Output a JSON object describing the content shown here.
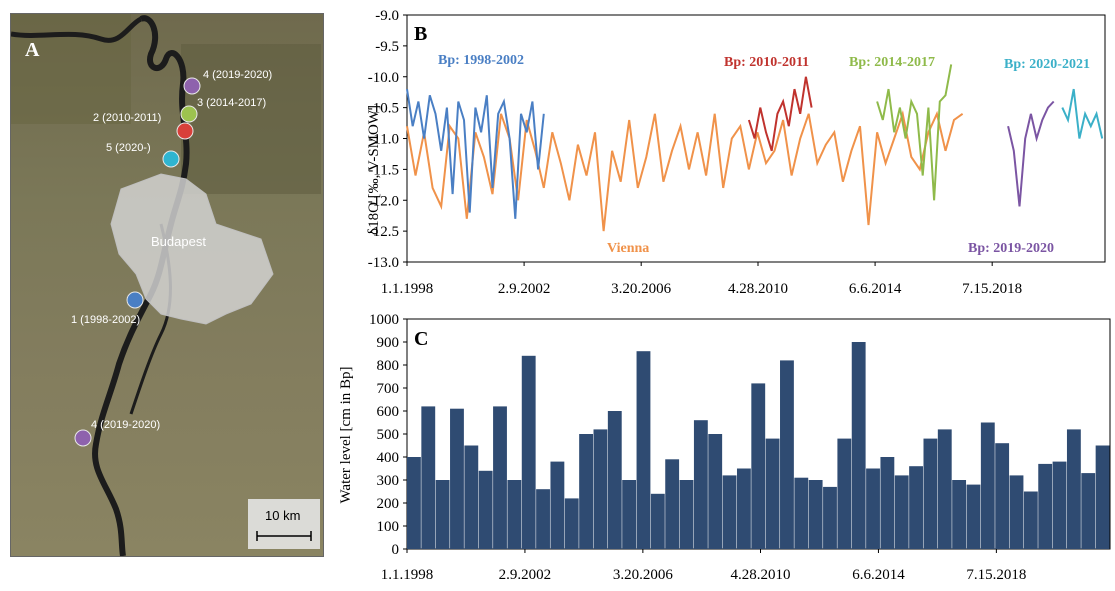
{
  "map": {
    "panel_label": "A",
    "city_label": "Budapest",
    "scale_label": "10 km",
    "sites": [
      {
        "label": "4 (2019-2020)",
        "color": "#8e62ad"
      },
      {
        "label": "3 (2014-2017)",
        "color": "#9dc34f"
      },
      {
        "label": "2 (2010-2011)",
        "color": "#d8403a"
      },
      {
        "label": "5 (2020-)",
        "color": "#2fb5d1"
      },
      {
        "label": "1 (1998-2002)",
        "color": "#4a7fc4"
      },
      {
        "label": "4 (2019-2020)",
        "color": "#8e62ad"
      }
    ]
  },
  "chart_data": [
    {
      "type": "line",
      "panel_label": "B",
      "ylabel": "δ18O [‰, V-SMOW]",
      "ylim": [
        -13.0,
        -9.0
      ],
      "yticks": [
        -9.0,
        -9.5,
        -10.0,
        -10.5,
        -11.0,
        -11.5,
        -12.0,
        -12.5,
        -13.0
      ],
      "ytick_labels": [
        "-9.0",
        "-9.5",
        "-10.0",
        "-10.5",
        "-11.0",
        "-11.5",
        "-12.0",
        "-12.5",
        "-13.0"
      ],
      "xtick_labels": [
        "1.1.1998",
        "2.9.2002",
        "3.20.2006",
        "4.28.2010",
        "6.6.2014",
        "7.15.2018"
      ],
      "xticks": [
        1998.0,
        2002.11,
        2006.22,
        2010.32,
        2014.43,
        2018.54
      ],
      "xlim": [
        1998.0,
        2022.5
      ],
      "grid": false,
      "series": [
        {
          "name": "Vienna",
          "color": "#f0924a",
          "x": [
            1998.0,
            1998.3,
            1998.6,
            1998.9,
            1999.2,
            1999.5,
            1999.8,
            2000.1,
            2000.4,
            2000.7,
            2001.0,
            2001.3,
            2001.6,
            2001.9,
            2002.2,
            2002.5,
            2002.8,
            2003.1,
            2003.4,
            2003.7,
            2004.0,
            2004.3,
            2004.6,
            2004.9,
            2005.2,
            2005.5,
            2005.8,
            2006.1,
            2006.4,
            2006.7,
            2007.0,
            2007.3,
            2007.6,
            2007.9,
            2008.2,
            2008.5,
            2008.8,
            2009.1,
            2009.4,
            2009.7,
            2010.0,
            2010.3,
            2010.6,
            2010.9,
            2011.2,
            2011.5,
            2011.8,
            2012.1,
            2012.4,
            2012.7,
            2013.0,
            2013.3,
            2013.6,
            2013.9,
            2014.2,
            2014.5,
            2014.8,
            2015.1,
            2015.4,
            2015.7,
            2016.0,
            2016.3,
            2016.6,
            2016.9,
            2017.2,
            2017.5
          ],
          "y": [
            -10.8,
            -11.6,
            -10.9,
            -11.8,
            -12.1,
            -10.8,
            -11.0,
            -12.3,
            -10.9,
            -11.3,
            -11.9,
            -10.6,
            -11.0,
            -12.0,
            -10.7,
            -11.2,
            -11.8,
            -10.9,
            -11.4,
            -12.0,
            -11.1,
            -11.6,
            -10.9,
            -12.5,
            -11.2,
            -11.7,
            -10.7,
            -11.8,
            -11.3,
            -10.6,
            -11.7,
            -11.2,
            -10.8,
            -11.5,
            -10.9,
            -11.6,
            -10.6,
            -11.8,
            -11.0,
            -10.8,
            -11.5,
            -10.9,
            -11.4,
            -11.2,
            -10.7,
            -11.6,
            -11.0,
            -10.6,
            -11.4,
            -11.1,
            -10.9,
            -11.7,
            -11.2,
            -10.8,
            -12.4,
            -10.9,
            -11.4,
            -11.0,
            -10.6,
            -11.3,
            -11.5,
            -10.9,
            -10.6,
            -11.2,
            -10.7,
            -10.6
          ]
        },
        {
          "name": "Bp: 1998-2002",
          "color": "#4a7fc4",
          "x": [
            1998.0,
            1998.2,
            1998.4,
            1998.6,
            1998.8,
            1999.0,
            1999.2,
            1999.4,
            1999.6,
            1999.8,
            2000.0,
            2000.2,
            2000.4,
            2000.6,
            2000.8,
            2001.0,
            2001.2,
            2001.4,
            2001.6,
            2001.8,
            2002.0,
            2002.2,
            2002.4,
            2002.6,
            2002.8
          ],
          "y": [
            -10.2,
            -10.8,
            -10.4,
            -11.0,
            -10.3,
            -10.6,
            -11.2,
            -10.5,
            -11.9,
            -10.4,
            -10.7,
            -12.2,
            -10.5,
            -10.9,
            -10.3,
            -11.8,
            -10.6,
            -10.4,
            -11.0,
            -12.3,
            -10.6,
            -10.9,
            -10.4,
            -11.5,
            -10.6
          ]
        },
        {
          "name": "Bp: 2010-2011",
          "color": "#c0332e",
          "x": [
            2010.0,
            2010.2,
            2010.4,
            2010.6,
            2010.8,
            2011.0,
            2011.2,
            2011.4,
            2011.6,
            2011.8,
            2012.0,
            2012.2
          ],
          "y": [
            -10.7,
            -11.0,
            -10.5,
            -10.9,
            -11.2,
            -10.6,
            -10.4,
            -10.8,
            -10.2,
            -10.6,
            -10.0,
            -10.5
          ]
        },
        {
          "name": "Bp: 2014-2017",
          "color": "#8fba4a",
          "x": [
            2014.5,
            2014.7,
            2014.9,
            2015.1,
            2015.3,
            2015.5,
            2015.7,
            2015.9,
            2016.1,
            2016.3,
            2016.5,
            2016.7,
            2016.9,
            2017.1
          ],
          "y": [
            -10.4,
            -10.7,
            -10.2,
            -10.9,
            -10.5,
            -11.0,
            -10.4,
            -10.6,
            -11.6,
            -10.5,
            -12.0,
            -10.4,
            -10.3,
            -9.8
          ]
        },
        {
          "name": "Bp: 2019-2020",
          "color": "#7b55a3",
          "x": [
            2019.1,
            2019.3,
            2019.5,
            2019.7,
            2019.9,
            2020.1,
            2020.3,
            2020.5,
            2020.7
          ],
          "y": [
            -10.8,
            -11.2,
            -12.1,
            -11.0,
            -10.6,
            -11.0,
            -10.7,
            -10.5,
            -10.4
          ]
        },
        {
          "name": "Bp: 2020-2021",
          "color": "#3bb0c8",
          "x": [
            2021.0,
            2021.2,
            2021.4,
            2021.6,
            2021.8,
            2022.0,
            2022.2,
            2022.4
          ],
          "y": [
            -10.5,
            -10.7,
            -10.2,
            -11.0,
            -10.6,
            -10.8,
            -10.6,
            -11.0
          ]
        }
      ]
    },
    {
      "type": "bar",
      "panel_label": "C",
      "ylabel": "Water level [cm in Bp]",
      "ylim": [
        0,
        1000
      ],
      "yticks": [
        0,
        100,
        200,
        300,
        400,
        500,
        600,
        700,
        800,
        900,
        1000
      ],
      "ytick_labels": [
        "0",
        "100",
        "200",
        "300",
        "400",
        "500",
        "600",
        "700",
        "800",
        "900",
        "1000"
      ],
      "xtick_labels": [
        "1.1.1998",
        "2.9.2002",
        "3.20.2006",
        "4.28.2010",
        "6.6.2014",
        "7.15.2018"
      ],
      "xticks": [
        1998.0,
        2002.11,
        2006.22,
        2010.32,
        2014.43,
        2018.54
      ],
      "xlim": [
        1998.0,
        2022.5
      ],
      "color": "#2f4b72",
      "x": [
        1998.0,
        1998.5,
        1999.0,
        1999.5,
        2000.0,
        2000.5,
        2001.0,
        2001.5,
        2002.0,
        2002.5,
        2003.0,
        2003.5,
        2004.0,
        2004.5,
        2005.0,
        2005.5,
        2006.0,
        2006.5,
        2007.0,
        2007.5,
        2008.0,
        2008.5,
        2009.0,
        2009.5,
        2010.0,
        2010.5,
        2011.0,
        2011.5,
        2012.0,
        2012.5,
        2013.0,
        2013.5,
        2014.0,
        2014.5,
        2015.0,
        2015.5,
        2016.0,
        2016.5,
        2017.0,
        2017.5,
        2018.0,
        2018.5,
        2019.0,
        2019.5,
        2020.0,
        2020.5,
        2021.0,
        2021.5,
        2022.0
      ],
      "values": [
        400,
        620,
        300,
        610,
        450,
        340,
        620,
        300,
        840,
        260,
        380,
        220,
        500,
        520,
        600,
        300,
        860,
        240,
        390,
        300,
        560,
        500,
        320,
        350,
        720,
        480,
        820,
        310,
        300,
        270,
        480,
        900,
        350,
        400,
        320,
        360,
        480,
        520,
        300,
        280,
        550,
        460,
        320,
        250,
        370,
        380,
        520,
        330,
        450
      ]
    }
  ]
}
